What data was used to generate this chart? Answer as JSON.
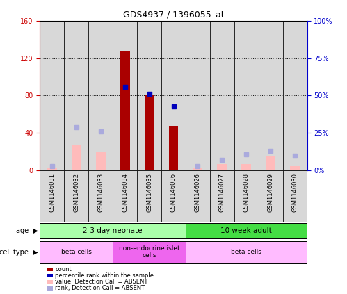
{
  "title": "GDS4937 / 1396055_at",
  "samples": [
    "GSM1146031",
    "GSM1146032",
    "GSM1146033",
    "GSM1146034",
    "GSM1146035",
    "GSM1146036",
    "GSM1146026",
    "GSM1146027",
    "GSM1146028",
    "GSM1146029",
    "GSM1146030"
  ],
  "count_values": [
    0,
    0,
    0,
    128,
    80,
    47,
    0,
    0,
    0,
    0,
    0
  ],
  "rank_values": [
    0,
    0,
    0,
    56,
    51,
    43,
    0,
    0,
    0,
    0,
    0
  ],
  "absent_value": [
    3,
    27,
    20,
    0,
    0,
    0,
    3,
    7,
    7,
    15,
    5
  ],
  "absent_rank": [
    3,
    29,
    26,
    0,
    0,
    0,
    3,
    7,
    11,
    13,
    10
  ],
  "ylim_left": [
    0,
    160
  ],
  "ylim_right": [
    0,
    100
  ],
  "yticks_left": [
    0,
    40,
    80,
    120,
    160
  ],
  "yticks_right": [
    0,
    25,
    50,
    75,
    100
  ],
  "ytick_labels_left": [
    "0",
    "40",
    "80",
    "120",
    "160"
  ],
  "ytick_labels_right": [
    "0%",
    "25%",
    "50%",
    "75%",
    "100%"
  ],
  "age_groups": [
    {
      "label": "2-3 day neonate",
      "start": 0,
      "end": 6,
      "color": "#aaffaa"
    },
    {
      "label": "10 week adult",
      "start": 6,
      "end": 11,
      "color": "#44dd44"
    }
  ],
  "cell_type_groups": [
    {
      "label": "beta cells",
      "start": 0,
      "end": 3,
      "color": "#ffbbff"
    },
    {
      "label": "non-endocrine islet\ncells",
      "start": 3,
      "end": 6,
      "color": "#ee66ee"
    },
    {
      "label": "beta cells",
      "start": 6,
      "end": 11,
      "color": "#ffbbff"
    }
  ],
  "bar_color_count": "#aa0000",
  "bar_color_absent_value": "#ffbbbb",
  "dot_color_rank": "#0000bb",
  "dot_color_absent_rank": "#aaaadd",
  "background_color": "#ffffff",
  "plot_bg_color": "#ffffff",
  "left_axis_color": "#cc0000",
  "right_axis_color": "#0000cc",
  "bar_width": 0.4,
  "sample_col_color": "#d8d8d8"
}
